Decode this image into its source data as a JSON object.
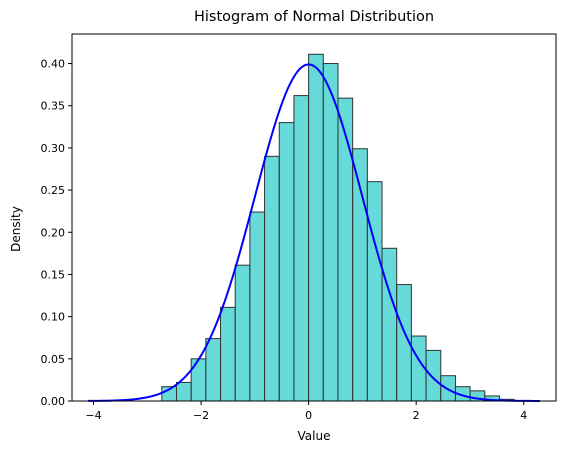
{
  "chart_data": {
    "type": "bar",
    "title": "Histogram of Normal Distribution",
    "xlabel": "Value",
    "ylabel": "Density",
    "xlim": [
      -4.4,
      4.6
    ],
    "ylim": [
      0,
      0.435
    ],
    "xticks": [
      -4,
      -2,
      0,
      2,
      4
    ],
    "xtick_labels": [
      "−4",
      "−2",
      "0",
      "2",
      "4"
    ],
    "yticks": [
      0.0,
      0.05,
      0.1,
      0.15,
      0.2,
      0.25,
      0.3,
      0.35,
      0.4
    ],
    "ytick_labels": [
      "0.00",
      "0.05",
      "0.10",
      "0.15",
      "0.20",
      "0.25",
      "0.30",
      "0.35",
      "0.40"
    ],
    "grid": false,
    "histogram": {
      "bin_start": -2.73,
      "bin_width": 0.273,
      "densities": [
        0.017,
        0.022,
        0.05,
        0.074,
        0.111,
        0.161,
        0.224,
        0.29,
        0.33,
        0.362,
        0.411,
        0.4,
        0.359,
        0.299,
        0.26,
        0.181,
        0.138,
        0.077,
        0.06,
        0.03,
        0.017,
        0.012,
        0.006,
        0.002
      ],
      "color": "#40d0d0",
      "edge_color": "#333333",
      "opacity": 0.8
    },
    "curve": {
      "type": "line",
      "function": "normal_pdf",
      "mean": 0,
      "std": 1,
      "x_range": [
        -4.1,
        4.3
      ],
      "color": "#0000ff"
    }
  }
}
